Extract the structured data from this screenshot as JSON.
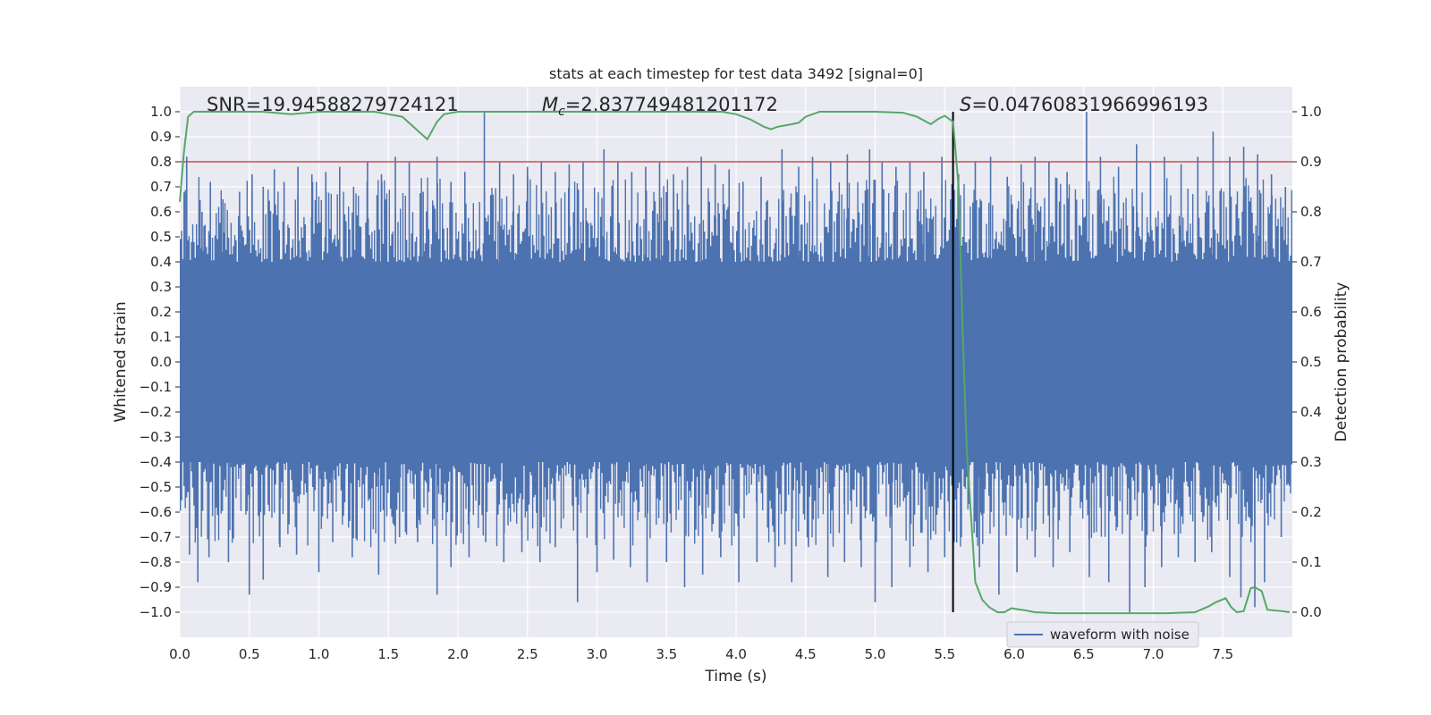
{
  "chart_data": {
    "type": "line",
    "title": "stats at each timestep for test data 3492 [signal=0]",
    "xlabel": "Time (s)",
    "ylabel": "Whitened strain",
    "ylabel_right": "Detection probability",
    "xlim": [
      0.0,
      8.0
    ],
    "ylim": [
      -1.1,
      1.1
    ],
    "ylim_right": [
      -0.05,
      1.05
    ],
    "x_ticks": [
      "0.0",
      "0.5",
      "1.0",
      "1.5",
      "2.0",
      "2.5",
      "3.0",
      "3.5",
      "4.0",
      "4.5",
      "5.0",
      "5.5",
      "6.0",
      "6.5",
      "7.0",
      "7.5"
    ],
    "y_ticks": [
      "1.0",
      "0.9",
      "0.8",
      "0.7",
      "0.6",
      "0.5",
      "0.4",
      "0.3",
      "0.2",
      "0.1",
      "0.0",
      "−0.1",
      "−0.2",
      "−0.3",
      "−0.4",
      "−0.5",
      "−0.6",
      "−0.7",
      "−0.8",
      "−0.9",
      "−1.0"
    ],
    "y_right_ticks": [
      "1.0",
      "0.9",
      "0.8",
      "0.7",
      "0.6",
      "0.5",
      "0.4",
      "0.3",
      "0.2",
      "0.1",
      "0.0"
    ],
    "grid": true,
    "legend": {
      "entries": [
        "waveform with noise"
      ],
      "placement": "lower-right"
    },
    "annotations": {
      "snr": "SNR=19.94588279724121",
      "mc_symbol": "M",
      "mc_subscript": "c",
      "mc_value": "=2.837749481201172",
      "s_symbol": "S",
      "s_value": "=0.04760831966996193"
    },
    "threshold_line": {
      "y": 0.9,
      "axis": "right",
      "color": "#c44e52"
    },
    "vertical_line": {
      "x": 5.56,
      "y_range": [
        0.0,
        1.0
      ],
      "axis": "right",
      "color": "#000000"
    },
    "series": [
      {
        "name": "waveform with noise",
        "axis": "left",
        "color": "#4c72b0",
        "note": "dense noisy strain signal; approximate envelope shown",
        "core_amplitude": 0.4,
        "spikes_up": [
          [
            0.05,
            0.82
          ],
          [
            0.16,
            0.6
          ],
          [
            0.22,
            0.72
          ],
          [
            0.31,
            0.65
          ],
          [
            0.43,
            0.68
          ],
          [
            0.52,
            0.75
          ],
          [
            0.6,
            0.7
          ],
          [
            0.68,
            0.77
          ],
          [
            0.75,
            0.72
          ],
          [
            0.85,
            0.78
          ],
          [
            0.95,
            0.75
          ],
          [
            1.05,
            0.76
          ],
          [
            1.15,
            0.78
          ],
          [
            1.25,
            0.7
          ],
          [
            1.35,
            0.8
          ],
          [
            1.45,
            0.75
          ],
          [
            1.55,
            0.82
          ],
          [
            1.65,
            0.8
          ],
          [
            1.75,
            0.68
          ],
          [
            1.85,
            0.82
          ],
          [
            1.95,
            0.72
          ],
          [
            2.05,
            0.76
          ],
          [
            2.19,
            1.0
          ],
          [
            2.3,
            0.8
          ],
          [
            2.4,
            0.75
          ],
          [
            2.5,
            0.78
          ],
          [
            2.6,
            0.8
          ],
          [
            2.7,
            0.76
          ],
          [
            2.8,
            0.79
          ],
          [
            2.9,
            0.8
          ],
          [
            3.05,
            0.85
          ],
          [
            3.15,
            0.8
          ],
          [
            3.25,
            0.76
          ],
          [
            3.35,
            0.78
          ],
          [
            3.45,
            0.8
          ],
          [
            3.55,
            0.75
          ],
          [
            3.65,
            0.78
          ],
          [
            3.75,
            0.82
          ],
          [
            3.85,
            0.79
          ],
          [
            3.95,
            0.77
          ],
          [
            4.05,
            0.72
          ],
          [
            4.18,
            0.74
          ],
          [
            4.33,
            0.85
          ],
          [
            4.45,
            0.78
          ],
          [
            4.55,
            0.82
          ],
          [
            4.68,
            0.8
          ],
          [
            4.8,
            0.83
          ],
          [
            4.96,
            0.85
          ],
          [
            5.05,
            0.8
          ],
          [
            5.15,
            0.78
          ],
          [
            5.25,
            0.8
          ],
          [
            5.35,
            0.76
          ],
          [
            5.48,
            0.82
          ],
          [
            5.6,
            0.75
          ],
          [
            5.72,
            0.8
          ],
          [
            5.83,
            0.82
          ],
          [
            5.95,
            0.74
          ],
          [
            6.05,
            0.79
          ],
          [
            6.15,
            0.82
          ],
          [
            6.25,
            0.8
          ],
          [
            6.38,
            0.76
          ],
          [
            6.52,
            1.0
          ],
          [
            6.62,
            0.82
          ],
          [
            6.75,
            0.78
          ],
          [
            6.88,
            0.87
          ],
          [
            6.98,
            0.8
          ],
          [
            7.08,
            0.82
          ],
          [
            7.2,
            0.79
          ],
          [
            7.32,
            0.82
          ],
          [
            7.43,
            0.92
          ],
          [
            7.55,
            0.82
          ],
          [
            7.65,
            0.86
          ],
          [
            7.75,
            0.83
          ],
          [
            7.85,
            0.75
          ],
          [
            7.95,
            0.7
          ]
        ],
        "spikes_down": [
          [
            0.07,
            -0.77
          ],
          [
            0.13,
            -0.88
          ],
          [
            0.21,
            -0.78
          ],
          [
            0.35,
            -0.8
          ],
          [
            0.5,
            -0.93
          ],
          [
            0.6,
            -0.87
          ],
          [
            0.72,
            -0.74
          ],
          [
            0.84,
            -0.77
          ],
          [
            1.0,
            -0.84
          ],
          [
            1.1,
            -0.72
          ],
          [
            1.24,
            -0.78
          ],
          [
            1.43,
            -0.85
          ],
          [
            1.58,
            -0.7
          ],
          [
            1.71,
            -0.72
          ],
          [
            1.85,
            -0.93
          ],
          [
            1.95,
            -0.82
          ],
          [
            2.08,
            -0.78
          ],
          [
            2.2,
            -0.72
          ],
          [
            2.33,
            -0.8
          ],
          [
            2.46,
            -0.76
          ],
          [
            2.59,
            -0.8
          ],
          [
            2.7,
            -0.74
          ],
          [
            2.86,
            -0.96
          ],
          [
            3.0,
            -0.84
          ],
          [
            3.12,
            -0.79
          ],
          [
            3.24,
            -0.82
          ],
          [
            3.36,
            -0.88
          ],
          [
            3.5,
            -0.8
          ],
          [
            3.63,
            -0.9
          ],
          [
            3.76,
            -0.85
          ],
          [
            3.89,
            -0.78
          ],
          [
            4.02,
            -0.88
          ],
          [
            4.15,
            -0.8
          ],
          [
            4.28,
            -0.82
          ],
          [
            4.4,
            -0.88
          ],
          [
            4.52,
            -0.74
          ],
          [
            4.66,
            -0.86
          ],
          [
            4.78,
            -0.8
          ],
          [
            4.9,
            -0.82
          ],
          [
            5.0,
            -0.96
          ],
          [
            5.12,
            -0.9
          ],
          [
            5.25,
            -0.82
          ],
          [
            5.38,
            -0.84
          ],
          [
            5.5,
            -0.78
          ],
          [
            5.62,
            -0.7
          ],
          [
            5.75,
            -0.82
          ],
          [
            5.89,
            -0.93
          ],
          [
            6.02,
            -0.84
          ],
          [
            6.15,
            -0.78
          ],
          [
            6.28,
            -0.82
          ],
          [
            6.4,
            -0.76
          ],
          [
            6.54,
            -0.86
          ],
          [
            6.68,
            -0.88
          ],
          [
            6.83,
            -1.0
          ],
          [
            6.94,
            -0.9
          ],
          [
            7.06,
            -0.82
          ],
          [
            7.18,
            -0.78
          ],
          [
            7.3,
            -0.8
          ],
          [
            7.42,
            -0.76
          ],
          [
            7.55,
            -0.86
          ],
          [
            7.63,
            -0.94
          ],
          [
            7.73,
            -0.98
          ],
          [
            7.8,
            -0.88
          ],
          [
            7.92,
            -0.7
          ]
        ]
      },
      {
        "name": "Detection probability",
        "axis": "right",
        "color": "#55a868",
        "x": [
          0.0,
          0.03,
          0.06,
          0.1,
          0.2,
          0.4,
          0.6,
          0.8,
          1.0,
          1.2,
          1.4,
          1.5,
          1.6,
          1.7,
          1.78,
          1.85,
          1.9,
          2.0,
          2.2,
          2.5,
          2.8,
          3.0,
          3.3,
          3.6,
          3.9,
          4.0,
          4.1,
          4.2,
          4.25,
          4.3,
          4.4,
          4.45,
          4.5,
          4.6,
          4.8,
          5.0,
          5.2,
          5.3,
          5.4,
          5.45,
          5.5,
          5.56,
          5.6,
          5.63,
          5.66,
          5.72,
          5.77,
          5.82,
          5.88,
          5.93,
          5.98,
          6.05,
          6.15,
          6.3,
          6.5,
          6.7,
          6.9,
          7.1,
          7.3,
          7.4,
          7.45,
          7.52,
          7.56,
          7.6,
          7.65,
          7.7,
          7.73,
          7.78,
          7.82,
          7.88,
          7.93,
          7.98
        ],
        "y": [
          0.82,
          0.92,
          0.99,
          1.0,
          1.0,
          1.0,
          1.0,
          0.995,
          1.0,
          1.0,
          1.0,
          0.995,
          0.99,
          0.965,
          0.945,
          0.98,
          0.995,
          1.0,
          1.0,
          1.0,
          1.0,
          1.0,
          1.0,
          1.0,
          1.0,
          0.995,
          0.985,
          0.97,
          0.965,
          0.97,
          0.975,
          0.978,
          0.99,
          1.0,
          1.0,
          1.0,
          0.998,
          0.99,
          0.975,
          0.985,
          0.992,
          0.98,
          0.85,
          0.55,
          0.32,
          0.06,
          0.025,
          0.01,
          0.0,
          0.0,
          0.008,
          0.005,
          0.0,
          -0.002,
          -0.002,
          -0.002,
          -0.002,
          -0.002,
          0.0,
          0.012,
          0.02,
          0.028,
          0.01,
          0.0,
          0.002,
          0.048,
          0.05,
          0.042,
          0.005,
          0.003,
          0.002,
          0.0
        ]
      }
    ]
  }
}
